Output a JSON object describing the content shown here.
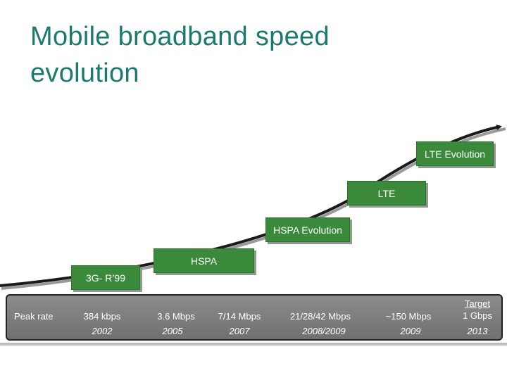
{
  "title": {
    "line1": "Mobile broadband speed",
    "line2": "evolution"
  },
  "stages": [
    "3G- R’99",
    "HSPA",
    "HSPA Evolution",
    "LTE",
    "LTE Evolution"
  ],
  "table": {
    "row_label": "Peak rate",
    "columns": [
      {
        "rate": "384 kbps",
        "year": "2002"
      },
      {
        "rate": "3.6 Mbps",
        "year": "2005"
      },
      {
        "rate": "7/14 Mbps",
        "year": "2007"
      },
      {
        "rate": "21/28/42 Mbps",
        "year": "2008/2009"
      },
      {
        "rate": "~150 Mbps",
        "year": "2009"
      },
      {
        "target_label": "Target",
        "rate": "1 Gbps",
        "year": "2013"
      }
    ]
  },
  "colors": {
    "title": "#1a7a6e",
    "stage_fill": "#3b8a3b",
    "panel": "#7f7f7f",
    "curve": "#1a1a1a"
  }
}
